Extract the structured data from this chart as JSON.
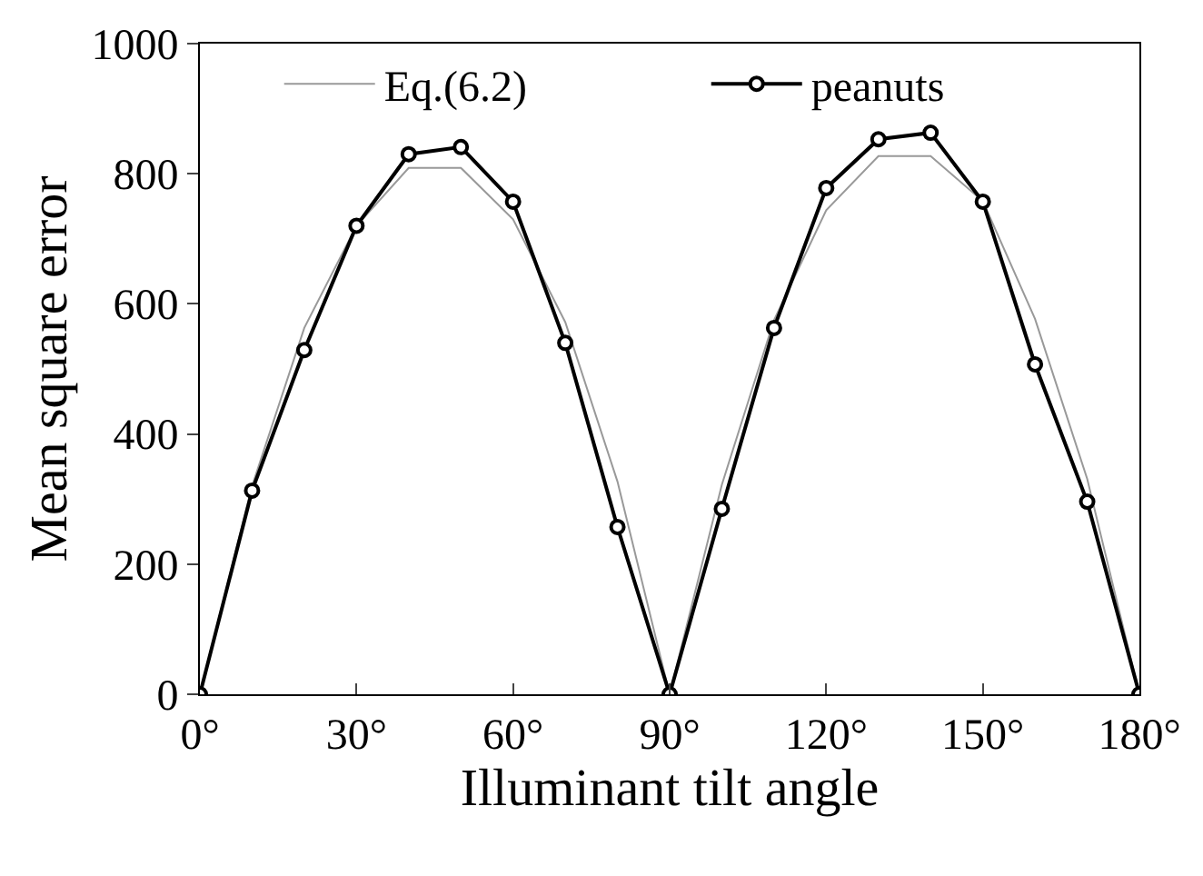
{
  "chart_data": {
    "type": "line",
    "xlabel": "Illuminant tilt angle",
    "ylabel": "Mean square error",
    "x": [
      0,
      10,
      20,
      30,
      40,
      50,
      60,
      70,
      80,
      90,
      100,
      110,
      120,
      130,
      140,
      150,
      160,
      170,
      180
    ],
    "series": [
      {
        "name": "Eq.(6.2)",
        "color": "#999999",
        "marker": "none",
        "values": [
          0,
          320,
          563,
          720,
          809,
          809,
          730,
          572,
          327,
          0,
          322,
          575,
          744,
          827,
          827,
          758,
          577,
          331,
          0
        ]
      },
      {
        "name": "peanuts",
        "color": "#000000",
        "marker": "circle",
        "values": [
          0,
          313,
          529,
          720,
          830,
          841,
          757,
          540,
          257,
          0,
          285,
          563,
          778,
          853,
          863,
          757,
          507,
          296,
          0
        ]
      }
    ],
    "xlim": [
      0,
      180
    ],
    "ylim": [
      0,
      1000
    ],
    "xticks": [
      {
        "value": 0,
        "label": "0°"
      },
      {
        "value": 30,
        "label": "30°"
      },
      {
        "value": 60,
        "label": "60°"
      },
      {
        "value": 90,
        "label": "90°"
      },
      {
        "value": 120,
        "label": "120°"
      },
      {
        "value": 150,
        "label": "150°"
      },
      {
        "value": 180,
        "label": "180°"
      }
    ],
    "yticks": [
      0,
      200,
      400,
      600,
      800,
      1000
    ],
    "grid": false,
    "legend": "top",
    "line_style": "solid"
  }
}
